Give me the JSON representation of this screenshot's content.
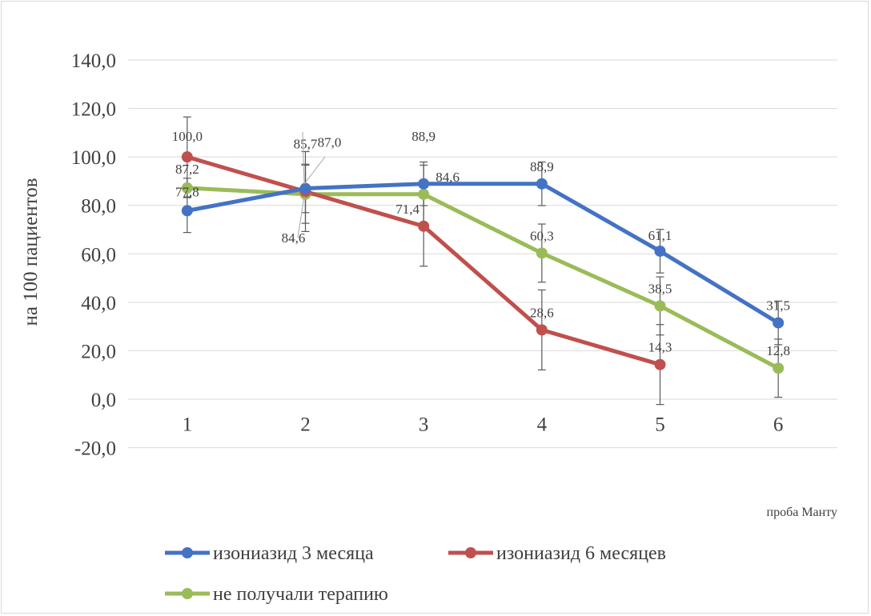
{
  "chart_data": {
    "type": "line",
    "title": "",
    "xlabel": "проба Манту",
    "ylabel": "на 100 пациентов",
    "categories": [
      "1",
      "2",
      "3",
      "4",
      "5",
      "6"
    ],
    "ylim": [
      -20,
      140
    ],
    "yticks": [
      -20,
      0,
      20,
      40,
      60,
      80,
      100,
      120,
      140
    ],
    "ytick_labels": [
      "-20,0",
      "0,0",
      "20,0",
      "40,0",
      "60,0",
      "80,0",
      "100,0",
      "120,0",
      "140,0"
    ],
    "grid": true,
    "legend_position": "bottom",
    "series": [
      {
        "name": "изониазид 3 месяца",
        "color": "#4472c4",
        "values": [
          77.8,
          87.0,
          88.9,
          88.9,
          61.1,
          31.5
        ],
        "labels": [
          "77,8",
          "87,0",
          "88,9",
          "88,9",
          "61,1",
          "31,5"
        ],
        "error": [
          9,
          10,
          9,
          9,
          9,
          9
        ]
      },
      {
        "name": "изониазид 6 месяцев",
        "color": "#c0504d",
        "values": [
          100.0,
          85.7,
          71.4,
          28.6,
          14.3,
          null
        ],
        "labels": [
          "100,0",
          "85,7",
          "71,4",
          "28,6",
          "14,3",
          ""
        ],
        "error": [
          16.5,
          16.5,
          16.5,
          16.5,
          16.5,
          null
        ]
      },
      {
        "name": "не получали терапию",
        "color": "#9bbb59",
        "values": [
          87.2,
          84.6,
          84.6,
          60.3,
          38.5,
          12.8
        ],
        "labels": [
          "87,2",
          "84,6",
          "84,6",
          "60,3",
          "38,5",
          "12,8"
        ],
        "error": [
          4,
          12,
          12,
          12,
          12,
          12
        ]
      }
    ]
  }
}
